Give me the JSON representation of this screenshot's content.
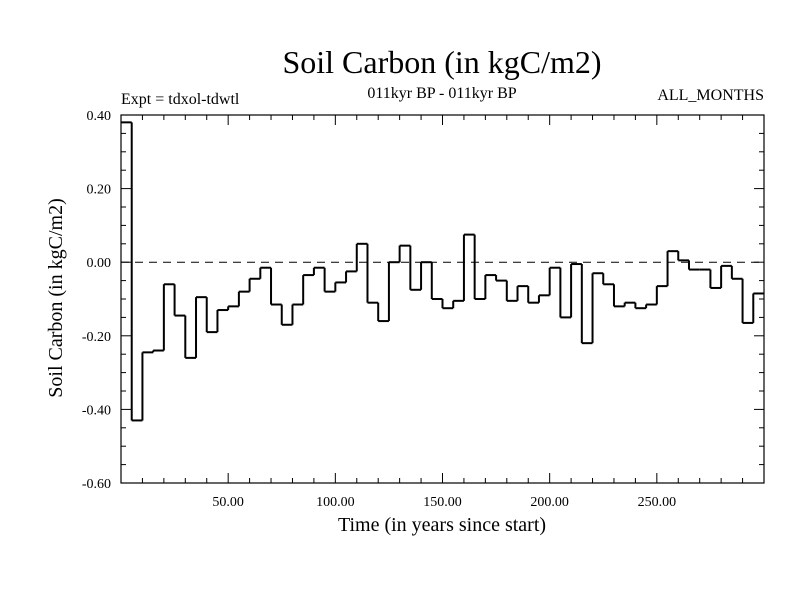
{
  "chart_data": {
    "type": "line",
    "title": "Soil Carbon (in kgC/m2)",
    "subtitle": "011kyr BP - 011kyr BP",
    "left_note": "Expt = tdxol-tdwtl",
    "right_note": "ALL_MONTHS",
    "xlabel": "Time (in years since start)",
    "ylabel": "Soil Carbon (in kgC/m2)",
    "xlim": [
      0,
      300
    ],
    "ylim": [
      -0.6,
      0.4
    ],
    "x_ticks": [
      50,
      100,
      150,
      200,
      250
    ],
    "x_tick_labels": [
      "50.00",
      "100.00",
      "150.00",
      "200.00",
      "250.00"
    ],
    "y_ticks": [
      0.4,
      0.2,
      0.0,
      -0.2,
      -0.4,
      -0.6
    ],
    "y_tick_labels": [
      "0.40",
      "0.20",
      "0.00",
      "-0.20",
      "-0.40",
      "-0.60"
    ],
    "zero_line": true,
    "step_width": 5,
    "x": [
      2.5,
      7.5,
      12.5,
      17.5,
      22.5,
      27.5,
      32.5,
      37.5,
      42.5,
      47.5,
      52.5,
      57.5,
      62.5,
      67.5,
      72.5,
      77.5,
      82.5,
      87.5,
      92.5,
      97.5,
      102.5,
      107.5,
      112.5,
      117.5,
      122.5,
      127.5,
      132.5,
      137.5,
      142.5,
      147.5,
      152.5,
      157.5,
      162.5,
      167.5,
      172.5,
      177.5,
      182.5,
      187.5,
      192.5,
      197.5,
      202.5,
      207.5,
      212.5,
      217.5,
      222.5,
      227.5,
      232.5,
      237.5,
      242.5,
      247.5,
      252.5,
      257.5,
      262.5,
      267.5,
      272.5,
      277.5,
      282.5,
      287.5,
      292.5,
      297.5
    ],
    "values": [
      0.38,
      -0.43,
      -0.245,
      -0.24,
      -0.06,
      -0.145,
      -0.26,
      -0.095,
      -0.19,
      -0.13,
      -0.12,
      -0.08,
      -0.045,
      -0.015,
      -0.115,
      -0.17,
      -0.115,
      -0.035,
      -0.015,
      -0.08,
      -0.055,
      -0.025,
      0.05,
      -0.11,
      -0.16,
      0.0,
      0.045,
      -0.075,
      0.0,
      -0.1,
      -0.125,
      -0.105,
      0.075,
      -0.1,
      -0.035,
      -0.05,
      -0.105,
      -0.065,
      -0.11,
      -0.09,
      -0.015,
      -0.15,
      -0.005,
      -0.22,
      -0.03,
      -0.06,
      -0.12,
      -0.11,
      -0.125,
      -0.115,
      -0.065,
      0.03,
      0.005,
      -0.02,
      -0.02,
      -0.07,
      -0.01,
      -0.045,
      -0.165,
      -0.085
    ]
  }
}
